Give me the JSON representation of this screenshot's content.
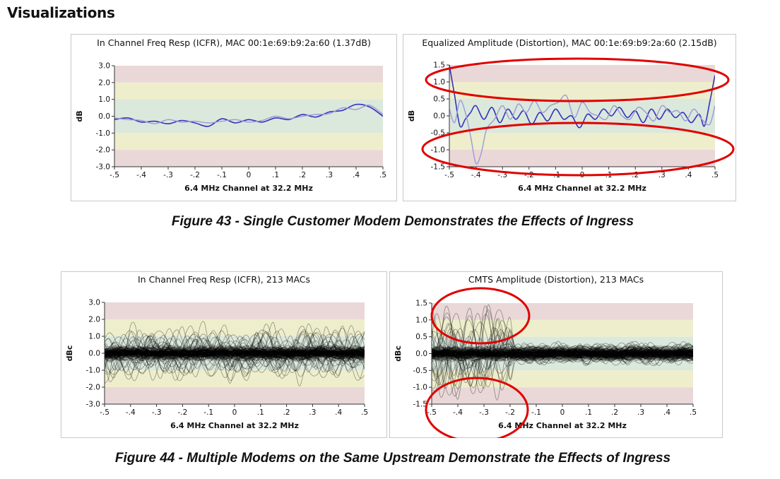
{
  "page": {
    "heading": "Visualizations",
    "figure43_caption": "Figure 43 - Single Customer Modem Demonstrates the Effects of Ingress",
    "figure44_caption": "Figure 44 - Multiple Modems on the Same Upstream Demonstrate the Effects of Ingress"
  },
  "colors": {
    "band_outer": "#ead8d8",
    "band_mid": "#eeeecc",
    "band_inner": "#dbe8dc",
    "series_dark": "#3333bb",
    "series_light": "#9a9ad8",
    "multi_lines": "#000000",
    "highlight": "#e00000"
  },
  "chart_data": [
    {
      "id": "fig43-icfr",
      "type": "line",
      "title": "In Channel Freq Resp (ICFR), MAC 00:1e:69:b9:2a:60 (1.37dB)",
      "xlabel": "6.4 MHz Channel  at 32.2 MHz",
      "ylabel": "dB",
      "xlim": [
        -0.5,
        0.5
      ],
      "ylim": [
        -3.0,
        3.0
      ],
      "xticks": [
        -0.5,
        -0.4,
        -0.3,
        -0.2,
        -0.1,
        0,
        0.1,
        0.2,
        0.3,
        0.4,
        0.5
      ],
      "xtick_labels": [
        "-.5",
        "-.4",
        "-.3",
        "-.2",
        "-.1",
        "0",
        ".1",
        ".2",
        ".3",
        ".4",
        ".5"
      ],
      "yticks": [
        -3,
        -2,
        -1,
        0,
        1,
        2,
        3
      ],
      "ytick_labels": [
        "-3.0",
        "-2.0",
        "-1.0",
        "0.0",
        "1.0",
        "2.0",
        "3.0"
      ],
      "bands": {
        "inner": 1.0,
        "mid": 2.0
      },
      "grid": false,
      "series": [
        {
          "role": "dark",
          "x": [
            -0.5,
            -0.45,
            -0.4,
            -0.35,
            -0.3,
            -0.25,
            -0.2,
            -0.15,
            -0.1,
            -0.05,
            0,
            0.05,
            0.1,
            0.15,
            0.2,
            0.25,
            0.3,
            0.35,
            0.4,
            0.45,
            0.5
          ],
          "values": [
            -0.2,
            -0.1,
            -0.35,
            -0.3,
            -0.45,
            -0.25,
            -0.4,
            -0.6,
            -0.15,
            -0.4,
            -0.2,
            -0.35,
            -0.1,
            -0.2,
            0.1,
            -0.05,
            0.25,
            0.35,
            0.7,
            0.55,
            0.0
          ]
        },
        {
          "role": "light",
          "x": [
            -0.5,
            -0.45,
            -0.4,
            -0.35,
            -0.3,
            -0.25,
            -0.2,
            -0.15,
            -0.1,
            -0.05,
            0,
            0.05,
            0.1,
            0.15,
            0.2,
            0.25,
            0.3,
            0.35,
            0.4,
            0.45,
            0.5
          ],
          "values": [
            -0.1,
            -0.2,
            -0.25,
            -0.45,
            -0.2,
            -0.35,
            -0.3,
            -0.4,
            -0.3,
            -0.2,
            -0.35,
            -0.25,
            0.0,
            -0.15,
            0.0,
            0.1,
            0.15,
            0.5,
            0.4,
            0.65,
            0.1
          ]
        }
      ]
    },
    {
      "id": "fig43-eq",
      "type": "line",
      "title": "Equalized Amplitude (Distortion), MAC 00:1e:69:b9:2a:60 (2.15dB)",
      "xlabel": "6.4 MHz Channel  at 32.2 MHz",
      "ylabel": "dB",
      "xlim": [
        -0.5,
        0.5
      ],
      "ylim": [
        -1.5,
        1.5
      ],
      "xticks": [
        -0.5,
        -0.4,
        -0.3,
        -0.2,
        -0.1,
        0,
        0.1,
        0.2,
        0.3,
        0.4,
        0.5
      ],
      "xtick_labels": [
        "-.5",
        "-.4",
        "-.3",
        "-.2",
        "-.1",
        "0",
        ".1",
        ".2",
        ".3",
        ".4",
        ".5"
      ],
      "yticks": [
        -1.5,
        -1.0,
        -0.5,
        0,
        0.5,
        1.0,
        1.5
      ],
      "ytick_labels": [
        "-1.5",
        "-1.0",
        "-0.5",
        "0.0",
        "0.5",
        "1.0",
        "1.5"
      ],
      "bands": {
        "inner": 0.5,
        "mid": 1.0
      },
      "grid": false,
      "series": [
        {
          "role": "dark",
          "x": [
            -0.5,
            -0.48,
            -0.46,
            -0.44,
            -0.42,
            -0.4,
            -0.37,
            -0.34,
            -0.31,
            -0.28,
            -0.25,
            -0.22,
            -0.19,
            -0.16,
            -0.13,
            -0.1,
            -0.07,
            -0.04,
            -0.01,
            0.02,
            0.05,
            0.08,
            0.11,
            0.14,
            0.17,
            0.2,
            0.23,
            0.26,
            0.29,
            0.32,
            0.35,
            0.38,
            0.41,
            0.44,
            0.46,
            0.48,
            0.5
          ],
          "values": [
            1.5,
            0.6,
            -0.3,
            -0.1,
            0.1,
            0.3,
            -0.1,
            0.25,
            -0.2,
            0.2,
            -0.1,
            0.15,
            -0.25,
            0.1,
            -0.15,
            0.2,
            -0.1,
            0.0,
            -0.35,
            0.05,
            -0.1,
            0.2,
            0.0,
            0.25,
            -0.05,
            0.15,
            -0.2,
            0.2,
            -0.1,
            0.2,
            -0.05,
            0.1,
            -0.2,
            0.05,
            -0.3,
            0.4,
            1.2
          ]
        },
        {
          "role": "light",
          "x": [
            -0.5,
            -0.48,
            -0.46,
            -0.44,
            -0.42,
            -0.4,
            -0.38,
            -0.36,
            -0.33,
            -0.3,
            -0.27,
            -0.24,
            -0.21,
            -0.18,
            -0.15,
            -0.12,
            -0.09,
            -0.06,
            -0.03,
            0.0,
            0.03,
            0.06,
            0.09,
            0.12,
            0.15,
            0.18,
            0.21,
            0.24,
            0.27,
            0.3,
            0.33,
            0.36,
            0.39,
            0.42,
            0.45,
            0.48,
            0.5
          ],
          "values": [
            0.2,
            -0.2,
            0.45,
            0.1,
            -0.6,
            -1.4,
            -1.1,
            -0.4,
            -0.1,
            0.3,
            -0.1,
            0.35,
            0.1,
            0.45,
            0.1,
            0.3,
            0.4,
            0.6,
            -0.05,
            0.4,
            0.1,
            0.0,
            -0.1,
            0.3,
            0.0,
            -0.1,
            0.25,
            0.1,
            -0.15,
            0.3,
            0.1,
            0.15,
            -0.15,
            0.2,
            -0.1,
            -0.25,
            0.3
          ]
        }
      ]
    },
    {
      "id": "fig44-icfr",
      "type": "line",
      "title": "In Channel Freq Resp (ICFR), 213 MACs",
      "xlabel": "6.4 MHz Channel  at 32.2 MHz",
      "ylabel": "dBc",
      "xlim": [
        -0.5,
        0.5
      ],
      "ylim": [
        -3.0,
        3.0
      ],
      "xticks": [
        -0.5,
        -0.4,
        -0.3,
        -0.2,
        -0.1,
        0,
        0.1,
        0.2,
        0.3,
        0.4,
        0.5
      ],
      "xtick_labels": [
        "-.5",
        "-.4",
        "-.3",
        "-.2",
        "-.1",
        "0",
        ".1",
        ".2",
        ".3",
        ".4",
        ".5"
      ],
      "yticks": [
        -3,
        -2,
        -1,
        0,
        1,
        2,
        3
      ],
      "ytick_labels": [
        "-3.0",
        "-2.0",
        "-1.0",
        "0.0",
        "1.0",
        "2.0",
        "3.0"
      ],
      "bands": {
        "inner": 1.0,
        "mid": 2.0
      },
      "grid": false,
      "modem_count": 213,
      "series_spread": {
        "typical_amplitude": 0.5,
        "outlier_amplitude": 2.0
      },
      "series": []
    },
    {
      "id": "fig44-eq",
      "type": "line",
      "title": "CMTS Amplitude (Distortion), 213 MACs",
      "xlabel": "6.4 MHz Channel  at 32.2 MHz",
      "ylabel": "dBc",
      "xlim": [
        -0.5,
        0.5
      ],
      "ylim": [
        -1.5,
        1.5
      ],
      "xticks": [
        -0.5,
        -0.4,
        -0.3,
        -0.2,
        -0.1,
        0,
        0.1,
        0.2,
        0.3,
        0.4,
        0.5
      ],
      "xtick_labels": [
        "-.5",
        "-.4",
        "-.3",
        "-.2",
        "-.1",
        "0",
        ".1",
        ".2",
        ".3",
        ".4",
        ".5"
      ],
      "yticks": [
        -1.5,
        -1.0,
        -0.5,
        0,
        0.5,
        1.0,
        1.5
      ],
      "ytick_labels": [
        "-1.5",
        "-1.0",
        "-0.5",
        "0.0",
        "0.5",
        "1.0",
        "1.5"
      ],
      "bands": {
        "inner": 0.5,
        "mid": 1.0
      },
      "grid": false,
      "modem_count": 213,
      "series_spread": {
        "typical_amplitude": 0.25,
        "outlier_amplitude": 1.5,
        "outlier_region": [
          -0.5,
          -0.2
        ]
      },
      "series": []
    }
  ]
}
